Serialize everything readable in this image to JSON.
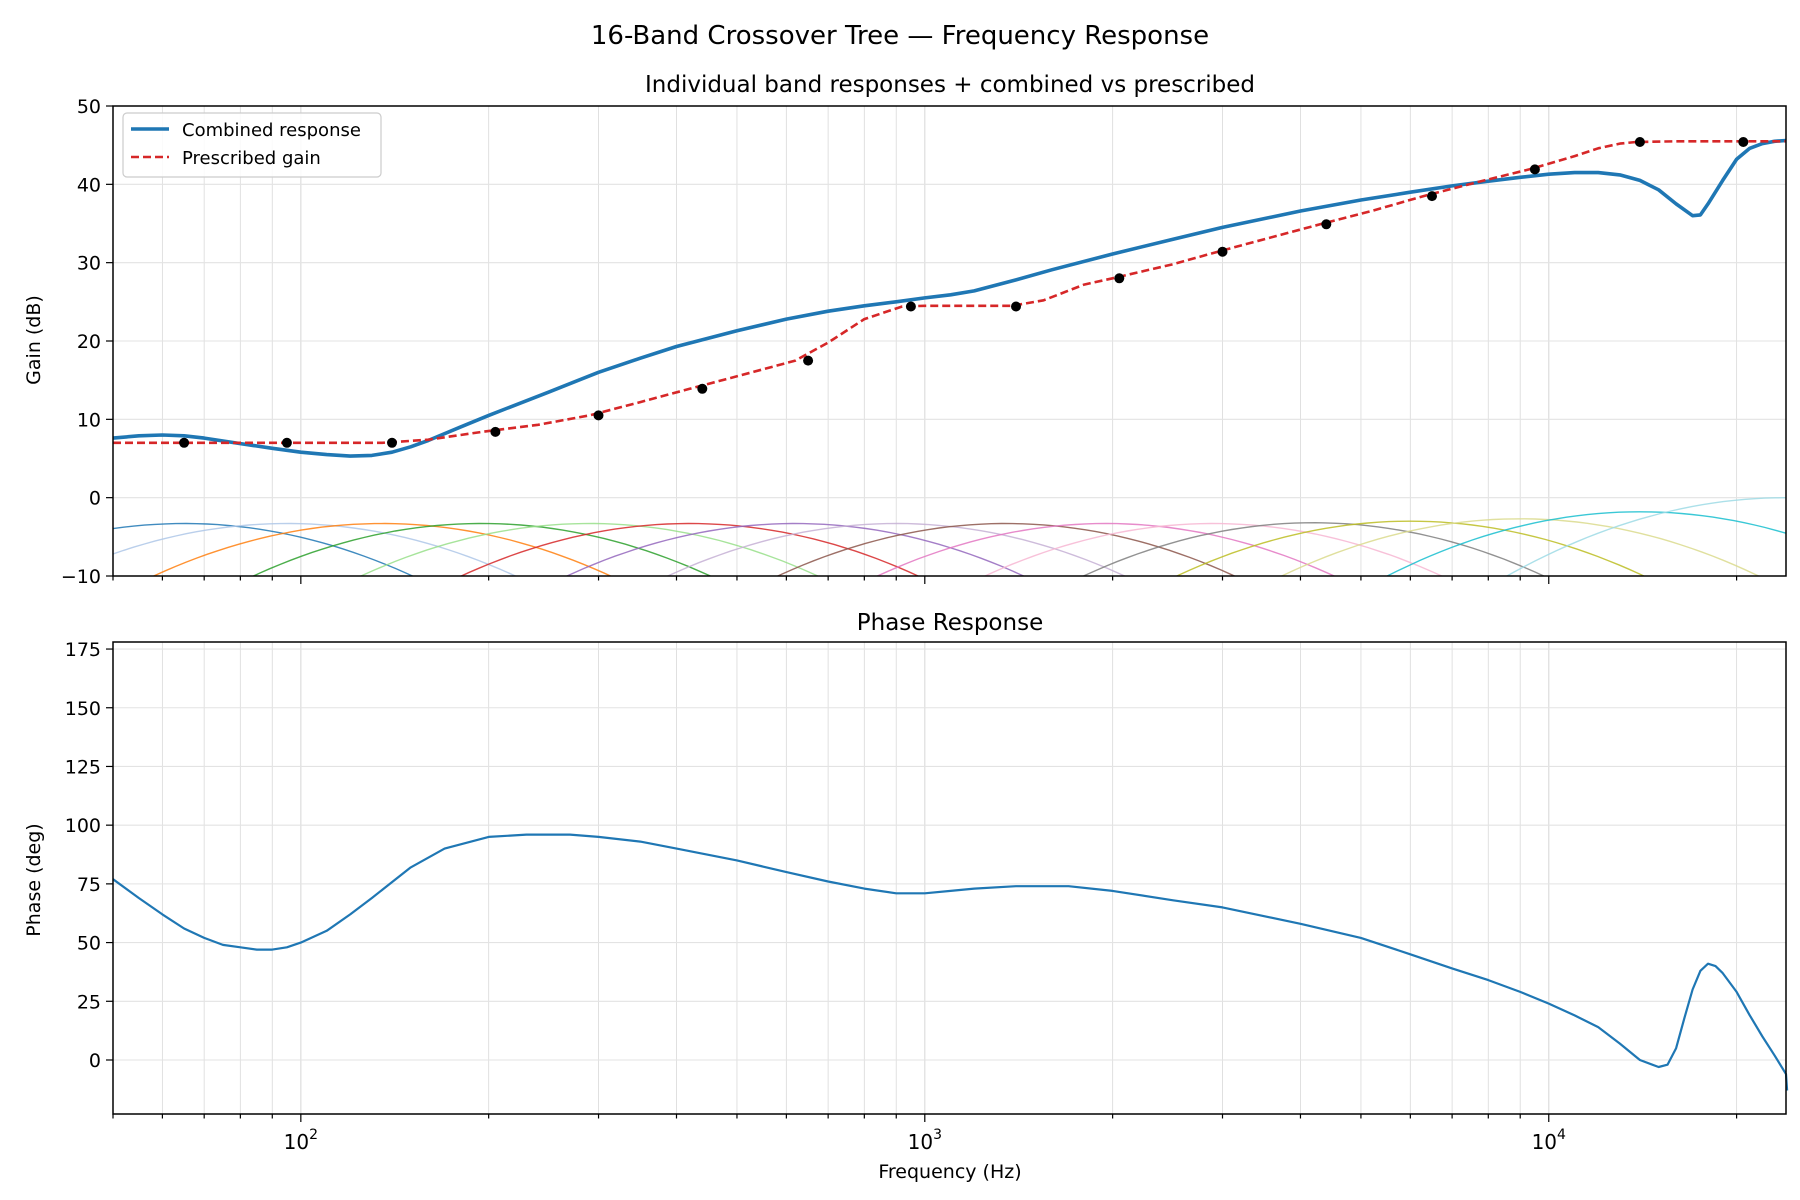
{
  "figure": {
    "title": "16-Band Crossover Tree — Frequency Response"
  },
  "chart_data": [
    {
      "type": "line",
      "title": "Individual band responses + combined vs prescribed",
      "xlabel": "",
      "ylabel": "Gain (dB)",
      "xscale": "log",
      "xlim": [
        50,
        24000
      ],
      "ylim": [
        -10,
        50
      ],
      "yticks": [
        -10,
        0,
        10,
        20,
        30,
        40,
        50
      ],
      "xticks": [
        {
          "value": 100,
          "label": "10",
          "exp": "2"
        },
        {
          "value": 1000,
          "label": "10",
          "exp": "3"
        },
        {
          "value": 10000,
          "label": "10",
          "exp": "4"
        }
      ],
      "grid": true,
      "legend_position": "upper-left",
      "series": [
        {
          "name": "Combined response",
          "color": "#1f77b4",
          "style": "solid",
          "x": [
            50,
            55,
            60,
            65,
            70,
            80,
            90,
            100,
            110,
            120,
            130,
            140,
            150,
            160,
            180,
            200,
            250,
            300,
            350,
            400,
            500,
            600,
            700,
            800,
            900,
            1000,
            1100,
            1200,
            1400,
            1600,
            2000,
            2500,
            3000,
            4000,
            5000,
            6000,
            7000,
            8000,
            9000,
            10000,
            11000,
            12000,
            13000,
            14000,
            15000,
            16000,
            17000,
            17500,
            18000,
            19000,
            20000,
            21000,
            22000,
            23000,
            24000
          ],
          "y": [
            7.6,
            7.9,
            8.0,
            7.9,
            7.6,
            6.9,
            6.3,
            5.8,
            5.5,
            5.3,
            5.4,
            5.8,
            6.5,
            7.3,
            9.0,
            10.5,
            13.5,
            16.0,
            17.8,
            19.3,
            21.3,
            22.8,
            23.8,
            24.5,
            25.0,
            25.5,
            25.9,
            26.4,
            27.8,
            29.1,
            31.1,
            33.0,
            34.5,
            36.6,
            38.0,
            39.0,
            39.8,
            40.4,
            40.9,
            41.3,
            41.5,
            41.5,
            41.2,
            40.5,
            39.3,
            37.5,
            36.0,
            36.1,
            37.5,
            40.5,
            43.2,
            44.6,
            45.2,
            45.5,
            45.6
          ]
        },
        {
          "name": "Prescribed gain",
          "color": "#d62728",
          "style": "dashed",
          "x": [
            50,
            65,
            90,
            135,
            160,
            195,
            240,
            290,
            350,
            420,
            500,
            620,
            700,
            800,
            920,
            1000,
            1200,
            1380,
            1550,
            1800,
            2000,
            2500,
            2950,
            3500,
            4300,
            5200,
            6300,
            7700,
            9300,
            11000,
            12000,
            13000,
            13800,
            16000,
            20000,
            24000
          ],
          "y": [
            7.0,
            7.0,
            7.0,
            7.0,
            7.4,
            8.4,
            9.3,
            10.5,
            12.2,
            13.9,
            15.5,
            17.5,
            19.8,
            22.8,
            24.4,
            24.5,
            24.5,
            24.5,
            25.2,
            27.2,
            28.0,
            29.8,
            31.4,
            33.0,
            34.9,
            36.6,
            38.5,
            40.3,
            41.9,
            43.6,
            44.6,
            45.2,
            45.4,
            45.5,
            45.5,
            45.5
          ]
        }
      ],
      "points": {
        "name": "",
        "color": "#000000",
        "x": [
          65,
          95,
          140,
          205,
          300,
          440,
          650,
          950,
          1400,
          2050,
          3000,
          4400,
          6500,
          9500,
          14000,
          20500
        ],
        "y": [
          7.0,
          7.0,
          7.0,
          8.4,
          10.5,
          13.9,
          17.5,
          24.4,
          24.4,
          28.0,
          31.4,
          34.9,
          38.5,
          41.9,
          45.4,
          45.4
        ]
      },
      "bands": [
        {
          "fc": 65,
          "peak": -3.3,
          "color": "#1f77b4"
        },
        {
          "fc": 95,
          "peak": -3.3,
          "color": "#aec7e8"
        },
        {
          "fc": 135,
          "peak": -3.3,
          "color": "#ff7f0e"
        },
        {
          "fc": 195,
          "peak": -3.3,
          "color": "#2ca02c"
        },
        {
          "fc": 290,
          "peak": -3.3,
          "color": "#98df8a"
        },
        {
          "fc": 420,
          "peak": -3.3,
          "color": "#d62728"
        },
        {
          "fc": 620,
          "peak": -3.3,
          "color": "#9467bd"
        },
        {
          "fc": 900,
          "peak": -3.3,
          "color": "#c5b0d5"
        },
        {
          "fc": 1350,
          "peak": -3.3,
          "color": "#8c564b"
        },
        {
          "fc": 1950,
          "peak": -3.3,
          "color": "#e377c2"
        },
        {
          "fc": 2900,
          "peak": -3.3,
          "color": "#f7b6d2"
        },
        {
          "fc": 4200,
          "peak": -3.2,
          "color": "#7f7f7f"
        },
        {
          "fc": 6000,
          "peak": -3.0,
          "color": "#bcbd22"
        },
        {
          "fc": 9000,
          "peak": -2.7,
          "color": "#dbdb8d"
        },
        {
          "fc": 14000,
          "peak": -1.8,
          "color": "#17becf"
        },
        {
          "fc": 24000,
          "peak": 0.0,
          "color": "#9edae5"
        }
      ]
    },
    {
      "type": "line",
      "title": "Phase Response",
      "xlabel": "Frequency (Hz)",
      "ylabel": "Phase (deg)",
      "xscale": "log",
      "xlim": [
        50,
        24000
      ],
      "ylim": [
        -23,
        178
      ],
      "yticks": [
        0,
        25,
        50,
        75,
        100,
        125,
        150,
        175
      ],
      "xticks": [
        {
          "value": 100,
          "label": "10",
          "exp": "2"
        },
        {
          "value": 1000,
          "label": "10",
          "exp": "3"
        },
        {
          "value": 10000,
          "label": "10",
          "exp": "4"
        }
      ],
      "grid": true,
      "series": [
        {
          "name": "",
          "color": "#1f77b4",
          "style": "solid",
          "x": [
            50,
            55,
            60,
            65,
            70,
            75,
            80,
            85,
            90,
            95,
            100,
            110,
            120,
            130,
            150,
            170,
            200,
            230,
            270,
            300,
            350,
            400,
            500,
            600,
            700,
            800,
            900,
            1000,
            1100,
            1200,
            1400,
            1550,
            1700,
            2000,
            2500,
            3000,
            4000,
            5000,
            6000,
            7000,
            8000,
            9000,
            10000,
            11000,
            12000,
            13000,
            14000,
            15000,
            15500,
            16000,
            16500,
            17000,
            17500,
            18000,
            18500,
            19000,
            20000,
            21000,
            22000,
            23000,
            24000,
            24100
          ],
          "y": [
            77,
            69,
            62,
            56,
            52,
            49,
            48,
            47,
            47,
            48,
            50,
            55,
            62,
            69,
            82,
            90,
            95,
            96,
            96,
            95,
            93,
            90,
            85,
            80,
            76,
            73,
            71,
            71,
            72,
            73,
            74,
            74,
            74,
            72,
            68,
            65,
            58,
            52,
            45,
            39,
            34,
            29,
            24,
            19,
            14,
            7,
            0,
            -3,
            -2,
            5,
            18,
            30,
            38,
            41,
            40,
            37,
            29,
            19,
            10,
            2,
            -6,
            -13
          ]
        }
      ]
    }
  ]
}
